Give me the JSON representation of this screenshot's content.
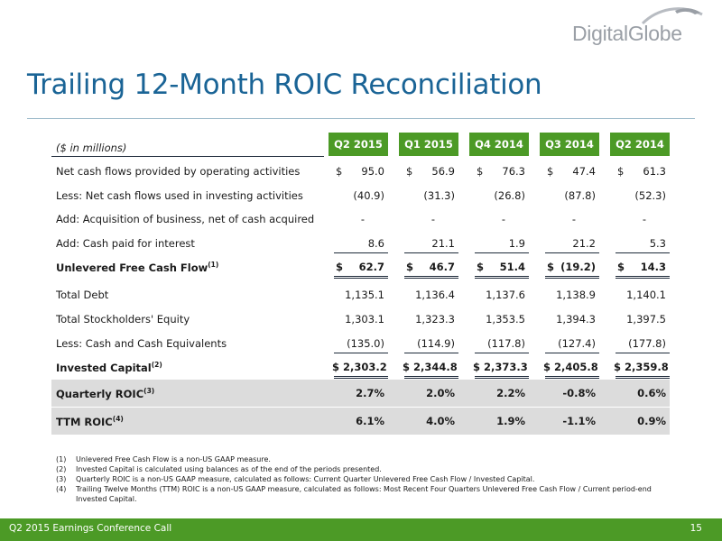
{
  "brand": {
    "logo_text": "DigitalGlobe"
  },
  "title": "Trailing 12-Month ROIC Reconciliation",
  "units_label": "($ in millions)",
  "columns": [
    "Q2 2015",
    "Q1 2015",
    "Q4 2014",
    "Q3 2014",
    "Q2 2014"
  ],
  "rows": [
    {
      "label": "Net cash flows provided by operating activities",
      "note": "",
      "values": [
        "95.0",
        "56.9",
        "76.3",
        "47.4",
        "61.3"
      ],
      "dollar": true
    },
    {
      "label": "Less: Net cash flows used in investing activities",
      "note": "",
      "values": [
        "(40.9)",
        "(31.3)",
        "(26.8)",
        "(87.8)",
        "(52.3)"
      ]
    },
    {
      "label": "Add: Acquisition of business, net of cash acquired",
      "note": "",
      "values": [
        "-",
        "-",
        "-",
        "-",
        "-"
      ]
    },
    {
      "label": "Add: Cash paid for interest",
      "note": "",
      "values": [
        "8.6",
        "21.1",
        "1.9",
        "21.2",
        "5.3"
      ]
    },
    {
      "label": "Unlevered Free Cash Flow",
      "note": "(1)",
      "values": [
        "62.7",
        "46.7",
        "51.4",
        "(19.2)",
        "14.3"
      ],
      "dollar": true
    },
    {
      "label": "Total Debt",
      "note": "",
      "values": [
        "1,135.1",
        "1,136.4",
        "1,137.6",
        "1,138.9",
        "1,140.1"
      ]
    },
    {
      "label": "Total Stockholders' Equity",
      "note": "",
      "values": [
        "1,303.1",
        "1,323.3",
        "1,353.5",
        "1,394.3",
        "1,397.5"
      ]
    },
    {
      "label": "Less: Cash and Cash Equivalents",
      "note": "",
      "values": [
        "(135.0)",
        "(114.9)",
        "(117.8)",
        "(127.4)",
        "(177.8)"
      ]
    },
    {
      "label": "Invested Capital",
      "note": "(2)",
      "values": [
        "$ 2,303.2",
        "$ 2,344.8",
        "$ 2,373.3",
        "$ 2,405.8",
        "$ 2,359.8"
      ]
    },
    {
      "label": "Quarterly ROIC",
      "note": "(3)",
      "values": [
        "2.7%",
        "2.0%",
        "2.2%",
        "-0.8%",
        "0.6%"
      ]
    },
    {
      "label": "TTM ROIC",
      "note": "(4)",
      "values": [
        "6.1%",
        "4.0%",
        "1.9%",
        "-1.1%",
        "0.9%"
      ]
    }
  ],
  "currency_symbol": "$",
  "footnotes": [
    {
      "num": "(1)",
      "text": "Unlevered Free Cash Flow is a non-US GAAP measure."
    },
    {
      "num": "(2)",
      "text": "Invested Capital is calculated using balances as of the end of the periods presented."
    },
    {
      "num": "(3)",
      "text": "Quarterly ROIC is a non-US GAAP measure, calculated as follows: Current Quarter Unlevered Free Cash Flow / Invested Capital."
    },
    {
      "num": "(4)",
      "text": "Trailing Twelve Months (TTM) ROIC is a non-US GAAP measure, calculated as follows: Most Recent Four Quarters Unlevered Free Cash Flow / Current period-end Invested Capital."
    }
  ],
  "footer": {
    "left": "Q2 2015 Earnings Conference Call",
    "page": "15"
  },
  "colors": {
    "accent_green": "#4c9a26",
    "title_blue": "#1a6496",
    "shade_gray": "#dcdcdc"
  }
}
